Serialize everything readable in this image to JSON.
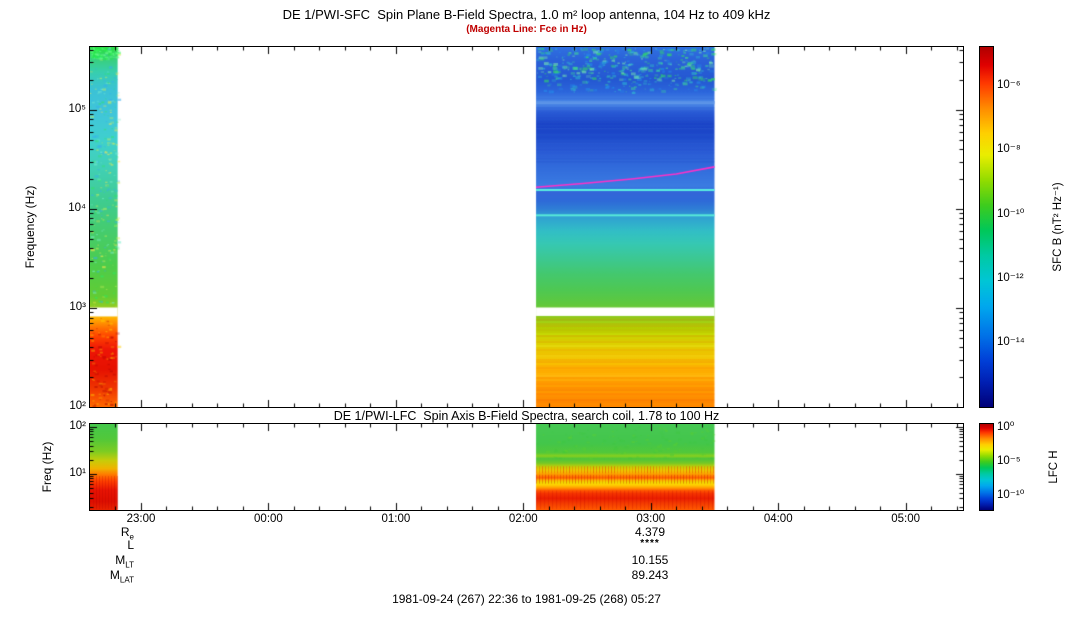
{
  "colors": {
    "subtitle": "#c00000",
    "fce_line": "#ff30c8",
    "axis": "#000000",
    "background": "#ffffff"
  },
  "ephemeris": {
    "rows": [
      {
        "label": "R",
        "sub": "e",
        "value": "4.379"
      },
      {
        "label": "L",
        "sub": "",
        "value": "****"
      },
      {
        "label": "M",
        "sub": "LT",
        "value": "10.155"
      },
      {
        "label": "M",
        "sub": "LAT",
        "value": "89.243"
      }
    ]
  },
  "footer": "1981-09-24 (267) 22:36 to 1981-09-25 (268) 05:27",
  "chart_data": {
    "type": "heatmap",
    "subtitle_note": "(Magenta Line: Fce in Hz)",
    "description": "DE 1 PWI dynamic spectrograms; two data intervals (approx 22:36-22:49 and 02:06-03:30 UT), remainder white data gap.",
    "time_axis": {
      "start_label": "1981-09-24 (267) 22:36",
      "end_label": "1981-09-25 (268) 05:27",
      "total_minutes": 411,
      "minor_step_minutes": 12,
      "major_ticks": [
        {
          "minute": 24,
          "label": "23:00"
        },
        {
          "minute": 84,
          "label": "00:00"
        },
        {
          "minute": 144,
          "label": "01:00"
        },
        {
          "minute": 204,
          "label": "02:00"
        },
        {
          "minute": 264,
          "label": "03:00"
        },
        {
          "minute": 324,
          "label": "04:00"
        },
        {
          "minute": 384,
          "label": "05:00"
        }
      ]
    },
    "palette": [
      [
        0.0,
        "#b00000"
      ],
      [
        0.05,
        "#e00000"
      ],
      [
        0.1,
        "#ff3800"
      ],
      [
        0.17,
        "#ff8c00"
      ],
      [
        0.24,
        "#ffd000"
      ],
      [
        0.3,
        "#eaee00"
      ],
      [
        0.37,
        "#93dc00"
      ],
      [
        0.44,
        "#3ecc1e"
      ],
      [
        0.51,
        "#00c85a"
      ],
      [
        0.58,
        "#00caa4"
      ],
      [
        0.65,
        "#00c6d6"
      ],
      [
        0.72,
        "#00a8ee"
      ],
      [
        0.8,
        "#0073e8"
      ],
      [
        0.87,
        "#0040d8"
      ],
      [
        0.93,
        "#0020b4"
      ],
      [
        1.0,
        "#000078"
      ]
    ],
    "panels": [
      {
        "id": "sfc",
        "title": "DE 1/PWI-SFC  Spin Plane B-Field Spectra, 1.0 m² loop antenna, 104 Hz to 409 kHz",
        "ylabel": "Frequency (Hz)",
        "freq_range_hz": [
          100,
          430000
        ],
        "yticks": [
          {
            "f": 100000,
            "label": "10⁵"
          },
          {
            "f": 10000,
            "label": "10⁴"
          },
          {
            "f": 1000,
            "label": "10³"
          },
          {
            "f": 100,
            "label": "10²"
          }
        ],
        "colorbar": {
          "label": "SFC B (nT² Hz⁻¹)",
          "log_range_exp": [
            -16.0,
            -4.8
          ],
          "ticks": [
            {
              "exp": -6,
              "label": "10⁻⁶"
            },
            {
              "exp": -8,
              "label": "10⁻⁸"
            },
            {
              "exp": -10,
              "label": "10⁻¹⁰"
            },
            {
              "exp": -12,
              "label": "10⁻¹²"
            },
            {
              "exp": -14,
              "label": "10⁻¹⁴"
            }
          ]
        },
        "seed": 42,
        "fce_line": {
          "color": "#ff30c8",
          "width": 1.6,
          "points": [
            [
              210,
              16500
            ],
            [
              232,
              18000
            ],
            [
              255,
              20000
            ],
            [
              276,
              22500
            ],
            [
              294,
              26500
            ]
          ]
        },
        "blocks": [
          {
            "t": [
              0,
              13
            ],
            "stops": [
              [
                420000,
                "#2fd84a"
              ],
              [
                330000,
                "#39cf7a"
              ],
              [
                240000,
                "#37cfae"
              ],
              [
                160000,
                "#3bc2d6"
              ],
              [
                90000,
                "#41c6da"
              ],
              [
                50000,
                "#3fd0ce"
              ],
              [
                25000,
                "#41d0b4"
              ],
              [
                12000,
                "#3fcc90"
              ],
              [
                6000,
                "#45cc6e"
              ],
              [
                2600,
                "#4ecc4a"
              ],
              [
                1300,
                "#63cc34"
              ],
              [
                1050,
                "#8ccc24"
              ],
              [
                800,
                "#ffb300"
              ],
              [
                640,
                "#ff7700"
              ],
              [
                520,
                "#ff4400"
              ],
              [
                380,
                "#ee1507"
              ],
              [
                240,
                "#e61100"
              ],
              [
                150,
                "#f03800"
              ],
              [
                100,
                "#ff6a00"
              ]
            ],
            "gaps": [
              [
                820,
                1010
              ]
            ],
            "speckle": [
              {
                "f": [
                  1050,
                  420000
                ],
                "colors": [
                  "#2ee85e",
                  "#7df0d0",
                  "#ffe94d",
                  "#35aef0",
                  "#c8f05a"
                ],
                "count": 260,
                "alpha": 0.6,
                "size": 3
              },
              {
                "f": [
                  330000,
                  428000
                ],
                "colors": [
                  "#22ee44",
                  "#66ff88"
                ],
                "count": 120,
                "alpha": 0.7,
                "size": 3
              },
              {
                "f": [
                  100,
                  820
                ],
                "colors": [
                  "#aa0000",
                  "#ffcc00"
                ],
                "count": 90,
                "alpha": 0.5,
                "size": 3
              }
            ]
          },
          {
            "t": [
              210,
              294
            ],
            "stops": [
              [
                420000,
                "#2f6fe0"
              ],
              [
                300000,
                "#2a5fd8"
              ],
              [
                200000,
                "#2458d2"
              ],
              [
                150000,
                "#2c66dc"
              ],
              [
                115000,
                "#4e8ce8"
              ],
              [
                95000,
                "#2a5cd6"
              ],
              [
                70000,
                "#1a42c6"
              ],
              [
                52000,
                "#1f4ccc"
              ],
              [
                40000,
                "#2a5ad4"
              ],
              [
                30000,
                "#2f66da"
              ],
              [
                22000,
                "#3572de"
              ],
              [
                17000,
                "#3b7ce2"
              ],
              [
                14500,
                "#3366d8"
              ],
              [
                12000,
                "#2e6ad8"
              ],
              [
                10000,
                "#2f7ed6"
              ],
              [
                8200,
                "#30a2d2"
              ],
              [
                6000,
                "#32bec6"
              ],
              [
                4500,
                "#36c8b4"
              ],
              [
                3200,
                "#3cc894"
              ],
              [
                2200,
                "#44c86e"
              ],
              [
                1500,
                "#4fc852"
              ],
              [
                1080,
                "#60c83c"
              ],
              [
                800,
                "#90cc1c"
              ],
              [
                620,
                "#b2d600"
              ],
              [
                470,
                "#d6dc00"
              ],
              [
                340,
                "#eecb00"
              ],
              [
                240,
                "#ffb800"
              ],
              [
                165,
                "#ff9d00"
              ],
              [
                100,
                "#ff8a00"
              ]
            ],
            "gaps": [
              [
                830,
                1010
              ]
            ],
            "hlines": [
              {
                "f": 118000,
                "color": "#5e96e8",
                "w": 3
              },
              {
                "f": 15500,
                "color": "#5af0e0",
                "w": 2
              },
              {
                "f": 8600,
                "color": "#58ead8",
                "w": 2
              }
            ],
            "hstripes": [
              {
                "f": [
                  30000,
                  150000
                ],
                "colors": [
                  "#1a44c8",
                  "#3f7ce0"
                ],
                "alpha": 0.25,
                "step": 3
              },
              {
                "f": [
                  100,
                  800
                ],
                "colors": [
                  "#ff5500",
                  "#ffee55",
                  "#ee3300"
                ],
                "alpha": 0.33,
                "step": 2
              }
            ],
            "speckle": [
              {
                "f": [
                  150000,
                  420000
                ],
                "colors": [
                  "#33ddcc",
                  "#44ee88",
                  "#2299ee"
                ],
                "count": 300,
                "alpha": 0.5,
                "size": 4
              },
              {
                "f": [
                  200000,
                  425000
                ],
                "colors": [
                  "#33ee55",
                  "#7cf0b0"
                ],
                "count": 160,
                "alpha": 0.6,
                "size": 4
              }
            ]
          }
        ]
      },
      {
        "id": "lfc",
        "title": "DE 1/PWI-LFC  Spin Axis B-Field Spectra, search coil, 1.78 to 100 Hz",
        "ylabel": "Freq (Hz)",
        "freq_range_hz": [
          1.7,
          115
        ],
        "yticks": [
          {
            "f": 100,
            "label": "10²"
          },
          {
            "f": 10,
            "label": "10¹"
          }
        ],
        "colorbar": {
          "label": "LFC H",
          "log_range_exp": [
            -12.15,
            0.5
          ],
          "ticks": [
            {
              "exp": 0,
              "label": "10⁰"
            },
            {
              "exp": -5,
              "label": "10⁻⁵"
            },
            {
              "exp": -10,
              "label": "10⁻¹⁰"
            }
          ]
        },
        "seed": 7,
        "blocks": [
          {
            "t": [
              0,
              13
            ],
            "stops": [
              [
                105,
                "#46c84a"
              ],
              [
                55,
                "#52c83a"
              ],
              [
                30,
                "#7ecc22"
              ],
              [
                19,
                "#c8cc0a"
              ],
              [
                13,
                "#f0b400"
              ],
              [
                9.5,
                "#ff7700"
              ],
              [
                7,
                "#ff4000"
              ],
              [
                4.5,
                "#e81404"
              ],
              [
                2.6,
                "#dd0e00"
              ],
              [
                1.78,
                "#e82200"
              ]
            ],
            "vstripes": [
              {
                "f": [
                  1.78,
                  9
                ],
                "color": "#aa0000",
                "alpha": 0.3,
                "step": 3
              }
            ]
          },
          {
            "t": [
              210,
              294
            ],
            "stops": [
              [
                105,
                "#47c853"
              ],
              [
                45,
                "#43c64b"
              ],
              [
                28,
                "#52c83a"
              ],
              [
                24,
                "#8ad01e"
              ],
              [
                21,
                "#4cc43c"
              ],
              [
                17,
                "#74c826"
              ],
              [
                14,
                "#c8ce08"
              ],
              [
                12,
                "#eccc00"
              ],
              [
                10.5,
                "#f8b400"
              ],
              [
                9.2,
                "#ff8800"
              ],
              [
                8.2,
                "#ff6200"
              ],
              [
                7.4,
                "#ffb300"
              ],
              [
                6.6,
                "#f0dc00"
              ],
              [
                5.8,
                "#ffd000"
              ],
              [
                5.0,
                "#ff9900"
              ],
              [
                4.4,
                "#ff5500"
              ],
              [
                3.8,
                "#f53300"
              ],
              [
                3.0,
                "#ea1e00"
              ],
              [
                2.4,
                "#f33a00"
              ],
              [
                1.78,
                "#ff5800"
              ]
            ],
            "vstripes": [
              {
                "f": [
                  10.2,
                  14.5
                ],
                "color": "#e03000",
                "alpha": 0.5,
                "step": 3
              },
              {
                "f": [
                  6.2,
                  9.6
                ],
                "color": "#cc1500",
                "alpha": 0.45,
                "step": 3
              },
              {
                "f": [
                  1.78,
                  4.4
                ],
                "color": "#c00800",
                "alpha": 0.3,
                "step": 4
              }
            ],
            "speckle": [
              {
                "f": [
                  20,
                  105
                ],
                "colors": [
                  "#3cc83c",
                  "#62d22a"
                ],
                "count": 150,
                "alpha": 0.4,
                "size": 3
              }
            ]
          }
        ]
      }
    ]
  }
}
